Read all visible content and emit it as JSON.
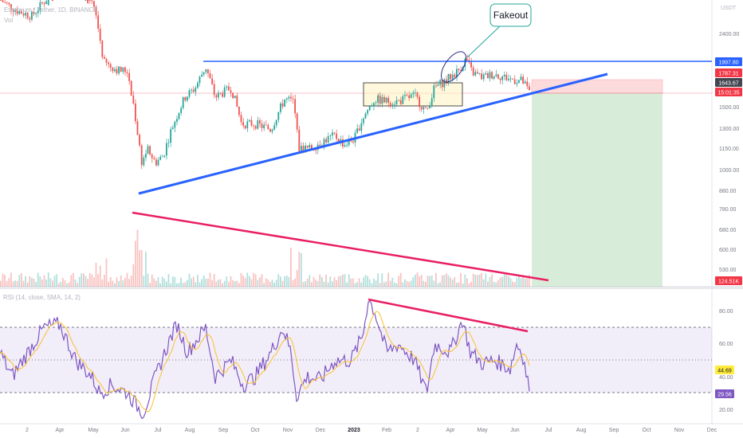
{
  "header": {
    "symbol_line": "Ethereum / Tether, 1D, BINANCE",
    "volume_label": "Vol",
    "rsi_label": "RSI (14, close, SMA, 14, 2)",
    "currency": "USDT"
  },
  "annotation": {
    "text": "Fakeout"
  },
  "price_axis": {
    "ticks": [
      "2400.00",
      "1997.80",
      "1787.31",
      "1643.67",
      "15:01:35",
      "1500.00",
      "1300.00",
      "1150.00",
      "1000.00",
      "880.00",
      "780.00",
      "680.00",
      "600.00",
      "530.00",
      "124.51K"
    ],
    "badges": [
      {
        "label": "1997.80",
        "color": "#2962ff"
      },
      {
        "label": "1787.31",
        "color": "#f23645"
      },
      {
        "label": "1643.67",
        "color": "#434651"
      },
      {
        "label": "15:01:35",
        "color": "#f23645"
      },
      {
        "label": "124.51K",
        "color": "#f23645"
      }
    ]
  },
  "rsi_axis": {
    "ticks": [
      "80.00",
      "60.00",
      "40.00",
      "20.00"
    ],
    "badges": [
      {
        "label": "44.69",
        "color": "#ffeb3b"
      },
      {
        "label": "29.56",
        "color": "#7e57c2"
      }
    ]
  },
  "time_axis": {
    "labels": [
      "2",
      "Apr",
      "May",
      "Jun",
      "Jul",
      "Aug",
      "Sep",
      "Oct",
      "Nov",
      "Dec",
      "2023",
      "Feb",
      "2",
      "Apr",
      "May",
      "Jun",
      "Jul",
      "Aug",
      "Sep",
      "Oct",
      "Nov",
      "Dec"
    ]
  },
  "chart_data": {
    "type": "candlestick",
    "symbol": "Ethereum / Tether",
    "interval": "1D",
    "exchange": "BINANCE",
    "price_levels": {
      "resistance": 1997.8,
      "close_marker": 1787.31,
      "last_price": 1643.67
    },
    "x": [
      "2022-03",
      "2022-04",
      "2022-05",
      "2022-06",
      "2022-07",
      "2022-08",
      "2022-09",
      "2022-10",
      "2022-11",
      "2022-12",
      "2023-01",
      "2023-02",
      "2023-03",
      "2023-04",
      "2023-05",
      "2023-06"
    ],
    "close": [
      3300,
      2950,
      1950,
      1060,
      1600,
      1650,
      1330,
      1560,
      1210,
      1200,
      1590,
      1650,
      1800,
      1910,
      1870,
      1643.67
    ],
    "rsi": [
      55,
      68,
      35,
      22,
      65,
      68,
      45,
      65,
      40,
      42,
      88,
      60,
      62,
      72,
      58,
      29.56
    ],
    "rsi_ma_last": 44.69,
    "volume_last": "124.51K"
  }
}
